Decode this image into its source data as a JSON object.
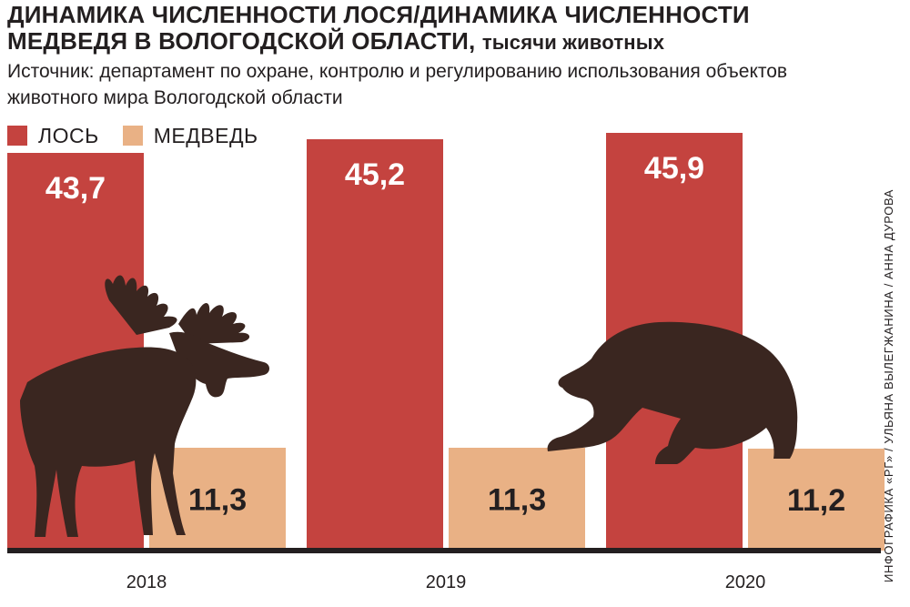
{
  "header": {
    "title": "ДИНАМИКА ЧИСЛЕННОСТИ ЛОСЯ/ДИНАМИКА ЧИСЛЕННОСТИ МЕДВЕДЯ В ВОЛОГОДСКОЙ ОБЛАСТИ,",
    "unit": "тысячи животных",
    "source": "Источник: департамент по охране, контролю и регулированию использования объектов животного мира Вологодской области"
  },
  "credit": "ИНФОГРАФИКА «РГ» / УЛЬЯНА ВЫЛЕГЖАНИНА / АННА ДУРОВА",
  "colors": {
    "moose": "#c4433f",
    "bear": "#e9b185",
    "silhouette": "#3a2620",
    "axis": "#231f20"
  },
  "icons": [
    "moose-silhouette",
    "bear-silhouette"
  ],
  "chart_data": {
    "type": "bar",
    "categories": [
      "2018",
      "2019",
      "2020"
    ],
    "series": [
      {
        "name": "ЛОСЬ",
        "values": [
          43.7,
          45.2,
          45.9
        ],
        "labels": [
          "43,7",
          "45,2",
          "45,9"
        ]
      },
      {
        "name": "МЕДВЕДЬ",
        "values": [
          11.3,
          11.3,
          11.2
        ],
        "labels": [
          "11,3",
          "11,3",
          "11,2"
        ]
      }
    ],
    "legend": "top-left",
    "grid": false
  }
}
